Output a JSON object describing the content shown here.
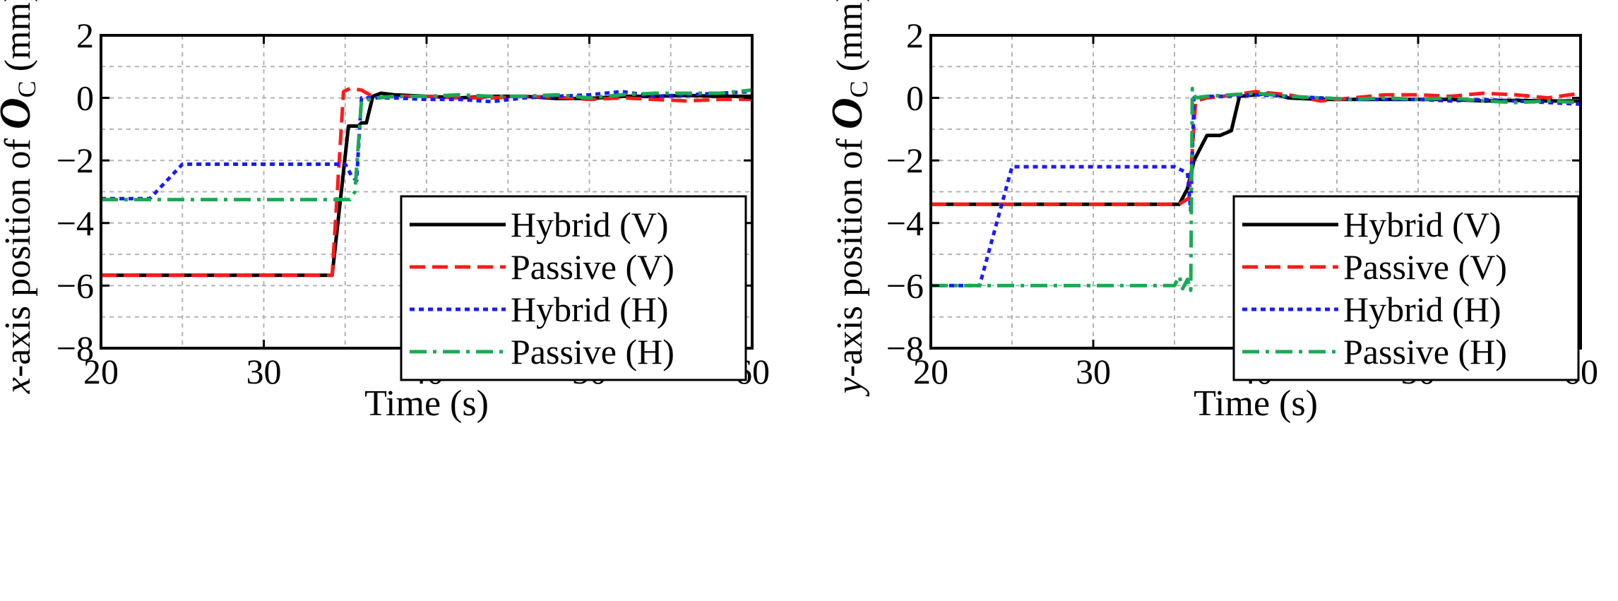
{
  "chart_data": [
    {
      "type": "line",
      "xlabel": "Time (s)",
      "ylabel_prefix": "x",
      "ylabel_mid": "-axis position of ",
      "ylabel_symbol": "O",
      "ylabel_sub": "C",
      "ylabel_unit": " (mm)",
      "xlim": [
        20,
        60
      ],
      "ylim": [
        -8,
        2
      ],
      "xticks": [
        20,
        30,
        40,
        50,
        60
      ],
      "yticks": [
        -8,
        -6,
        -4,
        -2,
        0,
        2
      ],
      "xtick_labels": [
        "20",
        "30",
        "40",
        "50",
        "60"
      ],
      "ytick_labels": [
        "−8",
        "−6",
        "−4",
        "−2",
        "0",
        "2"
      ],
      "legend_position": "center-right",
      "series": [
        {
          "name": "Hybrid (V)",
          "color": "#000000",
          "style": "solid",
          "x": [
            20,
            34.2,
            35.2,
            35.8,
            36.0,
            36.3,
            36.7,
            37.2,
            38,
            40,
            42,
            44,
            46,
            48,
            50,
            52,
            54,
            56,
            58,
            60
          ],
          "y": [
            -5.67,
            -5.67,
            -0.9,
            -0.9,
            -0.8,
            -0.8,
            0.05,
            0.15,
            0.1,
            0.05,
            0.0,
            0.05,
            0.05,
            -0.02,
            -0.02,
            0.05,
            0.05,
            0.08,
            0.05,
            0.05
          ]
        },
        {
          "name": "Passive (V)",
          "color": "#ff1a1a",
          "style": "dashed",
          "x": [
            20,
            34.2,
            34.9,
            35.3,
            36.0,
            36.5,
            37,
            38,
            40,
            42,
            44,
            46,
            48,
            50,
            52,
            54,
            56,
            58,
            60
          ],
          "y": [
            -5.67,
            -5.67,
            0.2,
            0.3,
            0.25,
            0.1,
            0.0,
            0.05,
            0.05,
            0.0,
            0.0,
            0.05,
            0.02,
            -0.05,
            0.0,
            -0.05,
            -0.1,
            -0.05,
            -0.05
          ]
        },
        {
          "name": "Hybrid (H)",
          "color": "#1a1aff",
          "style": "dotted",
          "x": [
            20,
            23,
            25,
            35.0,
            35.4,
            35.7,
            36.0,
            37,
            38,
            40,
            42,
            44,
            46,
            48,
            50,
            52,
            54,
            56,
            58,
            60
          ],
          "y": [
            -3.22,
            -3.22,
            -2.12,
            -2.12,
            -2.5,
            -2.65,
            0.0,
            0.0,
            0.0,
            -0.05,
            -0.05,
            -0.12,
            0.0,
            0.05,
            0.1,
            0.2,
            0.05,
            0.1,
            0.15,
            0.2
          ]
        },
        {
          "name": "Passive (H)",
          "color": "#1aaa55",
          "style": "dashdot",
          "x": [
            20,
            35.3,
            35.6,
            36.0,
            37,
            38,
            40,
            42,
            44,
            46,
            48,
            50,
            52,
            54,
            56,
            58,
            60
          ],
          "y": [
            -3.25,
            -3.25,
            -3.0,
            -0.1,
            0.0,
            0.05,
            0.05,
            0.1,
            0.05,
            0.05,
            0.1,
            0.0,
            0.1,
            0.15,
            0.15,
            0.15,
            0.25
          ]
        }
      ]
    },
    {
      "type": "line",
      "xlabel": "Time (s)",
      "ylabel_prefix": "y",
      "ylabel_mid": "-axis position of ",
      "ylabel_symbol": "O",
      "ylabel_sub": "C",
      "ylabel_unit": " (mm)",
      "xlim": [
        20,
        60
      ],
      "ylim": [
        -8,
        2
      ],
      "xticks": [
        20,
        30,
        40,
        50,
        60
      ],
      "yticks": [
        -8,
        -6,
        -4,
        -2,
        0,
        2
      ],
      "xtick_labels": [
        "20",
        "30",
        "40",
        "50",
        "60"
      ],
      "ytick_labels": [
        "−8",
        "−6",
        "−4",
        "−2",
        "0",
        "2"
      ],
      "legend_position": "center-right",
      "series": [
        {
          "name": "Hybrid (V)",
          "color": "#000000",
          "style": "solid",
          "x": [
            20,
            35.3,
            35.8,
            36.2,
            37.0,
            37.8,
            38.5,
            39,
            40,
            41,
            42,
            44,
            46,
            48,
            50,
            52,
            54,
            56,
            58,
            60
          ],
          "y": [
            -3.4,
            -3.4,
            -2.9,
            -2.0,
            -1.2,
            -1.2,
            -1.05,
            0.05,
            0.1,
            0.15,
            0.0,
            -0.05,
            -0.05,
            -0.05,
            -0.05,
            -0.05,
            -0.1,
            -0.08,
            -0.1,
            -0.1
          ]
        },
        {
          "name": "Passive (V)",
          "color": "#ff1a1a",
          "style": "dashed",
          "x": [
            20,
            35.3,
            35.9,
            36.3,
            37,
            38,
            40,
            42,
            44,
            46,
            48,
            50,
            52,
            54,
            56,
            58,
            60
          ],
          "y": [
            -3.4,
            -3.4,
            -3.2,
            -0.1,
            0.0,
            0.05,
            0.2,
            0.1,
            -0.1,
            0.0,
            0.1,
            0.1,
            0.05,
            0.15,
            0.1,
            0.0,
            0.15
          ]
        },
        {
          "name": "Hybrid (H)",
          "color": "#1a1aff",
          "style": "dotted",
          "x": [
            20,
            23,
            25,
            35.0,
            35.8,
            36.0,
            36.2,
            37,
            38,
            40,
            42,
            44,
            46,
            48,
            50,
            52,
            54,
            56,
            58,
            60
          ],
          "y": [
            -6.0,
            -6.0,
            -2.2,
            -2.2,
            -2.4,
            -3.6,
            0.0,
            0.05,
            0.05,
            0.1,
            0.05,
            0.0,
            -0.05,
            -0.05,
            -0.05,
            -0.1,
            -0.05,
            -0.1,
            -0.15,
            -0.2
          ]
        },
        {
          "name": "Passive (H)",
          "color": "#1aaa55",
          "style": "dashdot",
          "x": [
            20,
            35.0,
            35.3,
            35.5,
            35.8,
            36.0,
            36.1,
            36.3,
            37,
            40,
            42,
            44,
            46,
            48,
            50,
            52,
            54,
            56,
            58,
            60
          ],
          "y": [
            -6.0,
            -6.0,
            -5.7,
            -6.1,
            -5.8,
            -6.15,
            0.3,
            0.0,
            0.05,
            0.15,
            0.05,
            0.0,
            -0.05,
            0.0,
            -0.05,
            0.0,
            -0.1,
            -0.15,
            -0.1,
            -0.15
          ]
        }
      ]
    }
  ]
}
